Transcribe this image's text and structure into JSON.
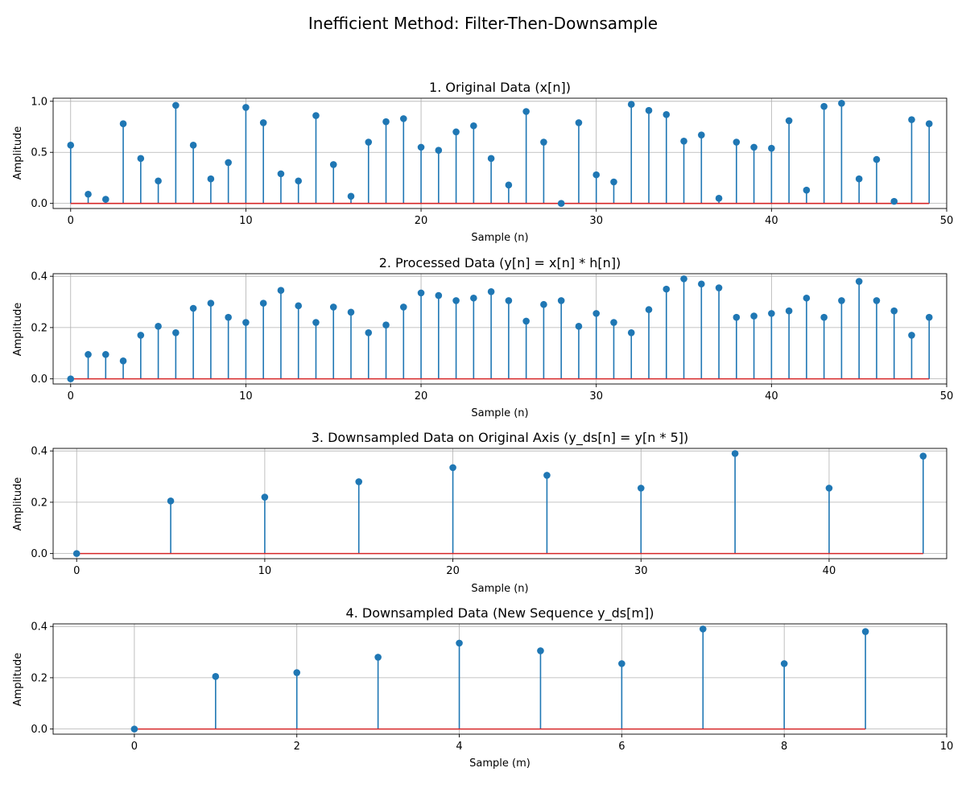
{
  "figure": {
    "title": "Inefficient Method: Filter-Then-Downsample",
    "colors": {
      "stem": "#1f77b4",
      "marker": "#1f77b4",
      "baseline": "#d62728",
      "grid": "#b0b0b0"
    }
  },
  "chart_data": [
    {
      "type": "stem",
      "title": "1. Original Data (x[n])",
      "xlabel": "Sample (n)",
      "ylabel": "Amplitude",
      "xlim": [
        -1,
        50
      ],
      "ylim": [
        -0.05,
        1.03
      ],
      "xticks": [
        0,
        10,
        20,
        30,
        40,
        50
      ],
      "yticks": [
        0.0,
        0.5,
        1.0
      ],
      "ytick_labels": [
        "0.0",
        "0.5",
        "1.0"
      ],
      "grid": true,
      "x": [
        0,
        1,
        2,
        3,
        4,
        5,
        6,
        7,
        8,
        9,
        10,
        11,
        12,
        13,
        14,
        15,
        16,
        17,
        18,
        19,
        20,
        21,
        22,
        23,
        24,
        25,
        26,
        27,
        28,
        29,
        30,
        31,
        32,
        33,
        34,
        35,
        36,
        37,
        38,
        39,
        40,
        41,
        42,
        43,
        44,
        45,
        46,
        47,
        48,
        49
      ],
      "values": [
        0.57,
        0.09,
        0.04,
        0.78,
        0.44,
        0.22,
        0.96,
        0.57,
        0.24,
        0.4,
        0.94,
        0.79,
        0.29,
        0.22,
        0.86,
        0.38,
        0.07,
        0.6,
        0.8,
        0.83,
        0.55,
        0.52,
        0.7,
        0.76,
        0.44,
        0.18,
        0.9,
        0.6,
        0.0,
        0.79,
        0.28,
        0.21,
        0.97,
        0.91,
        0.87,
        0.61,
        0.67,
        0.05,
        0.6,
        0.55,
        0.54,
        0.81,
        0.13,
        0.95,
        0.98,
        0.24,
        0.43,
        0.02,
        0.82,
        0.78
      ]
    },
    {
      "type": "stem",
      "title": "2. Processed Data (y[n] = x[n] * h[n])",
      "xlabel": "Sample (n)",
      "ylabel": "Amplitude",
      "xlim": [
        -1,
        50
      ],
      "ylim": [
        -0.02,
        0.41
      ],
      "xticks": [
        0,
        10,
        20,
        30,
        40,
        50
      ],
      "yticks": [
        0.0,
        0.2,
        0.4
      ],
      "ytick_labels": [
        "0.0",
        "0.2",
        "0.4"
      ],
      "grid": true,
      "x": [
        0,
        1,
        2,
        3,
        4,
        5,
        6,
        7,
        8,
        9,
        10,
        11,
        12,
        13,
        14,
        15,
        16,
        17,
        18,
        19,
        20,
        21,
        22,
        23,
        24,
        25,
        26,
        27,
        28,
        29,
        30,
        31,
        32,
        33,
        34,
        35,
        36,
        37,
        38,
        39,
        40,
        41,
        42,
        43,
        44,
        45,
        46,
        47,
        48,
        49
      ],
      "values": [
        0.0,
        0.095,
        0.095,
        0.07,
        0.17,
        0.205,
        0.18,
        0.275,
        0.295,
        0.24,
        0.22,
        0.295,
        0.345,
        0.285,
        0.22,
        0.28,
        0.26,
        0.18,
        0.21,
        0.28,
        0.335,
        0.325,
        0.305,
        0.315,
        0.34,
        0.305,
        0.225,
        0.29,
        0.305,
        0.205,
        0.255,
        0.22,
        0.18,
        0.27,
        0.35,
        0.39,
        0.37,
        0.355,
        0.24,
        0.245,
        0.255,
        0.265,
        0.315,
        0.24,
        0.305,
        0.38,
        0.305,
        0.265,
        0.17,
        0.24
      ]
    },
    {
      "type": "stem",
      "title": "3. Downsampled Data on Original Axis (y_ds[n] = y[n * 5])",
      "xlabel": "Sample (n)",
      "ylabel": "Amplitude",
      "xlim": [
        -1.25,
        46.25
      ],
      "ylim": [
        -0.02,
        0.41
      ],
      "xticks": [
        0,
        10,
        20,
        30,
        40
      ],
      "yticks": [
        0.0,
        0.2,
        0.4
      ],
      "ytick_labels": [
        "0.0",
        "0.2",
        "0.4"
      ],
      "grid": true,
      "x": [
        0,
        5,
        10,
        15,
        20,
        25,
        30,
        35,
        40,
        45
      ],
      "values": [
        0.0,
        0.205,
        0.22,
        0.28,
        0.335,
        0.305,
        0.255,
        0.39,
        0.255,
        0.38
      ]
    },
    {
      "type": "stem",
      "title": "4. Downsampled Data (New Sequence y_ds[m])",
      "xlabel": "Sample (m)",
      "ylabel": "Amplitude",
      "xlim": [
        -1,
        10
      ],
      "ylim": [
        -0.02,
        0.41
      ],
      "xticks": [
        0,
        2,
        4,
        6,
        8,
        10
      ],
      "yticks": [
        0.0,
        0.2,
        0.4
      ],
      "ytick_labels": [
        "0.0",
        "0.2",
        "0.4"
      ],
      "grid": true,
      "x": [
        0,
        1,
        2,
        3,
        4,
        5,
        6,
        7,
        8,
        9
      ],
      "values": [
        0.0,
        0.205,
        0.22,
        0.28,
        0.335,
        0.305,
        0.255,
        0.39,
        0.255,
        0.38
      ]
    }
  ]
}
